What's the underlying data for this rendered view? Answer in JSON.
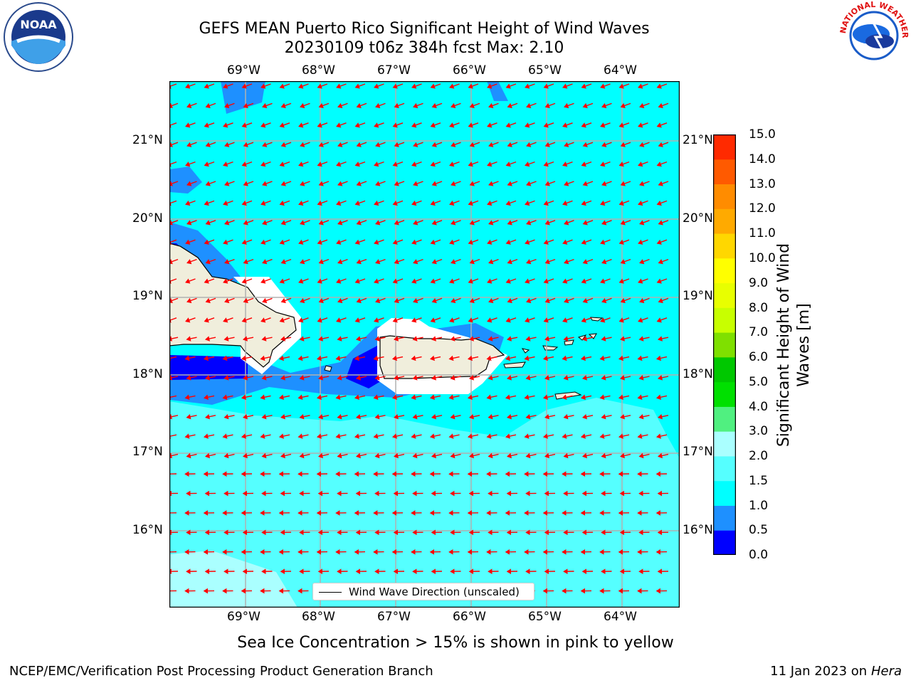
{
  "title": {
    "line1": "GEFS MEAN Puerto Rico Significant Height of Wind Waves",
    "line2": "20230109 t06z 384h fcst   Max: 2.10"
  },
  "map": {
    "lon_labels": [
      "69°W",
      "68°W",
      "67°W",
      "66°W",
      "65°W",
      "64°W"
    ],
    "lat_labels": [
      "21°N",
      "20°N",
      "19°N",
      "18°N",
      "17°N",
      "16°N"
    ],
    "legend_text": "Wind Wave Direction (unscaled)",
    "colors": {
      "ocean_main": "#00ffff",
      "ocean_light": "#55ffff",
      "ocean_lighter": "#aaffff",
      "shallow_mid": "#1e90ff",
      "shallow_dark": "#0000ff",
      "land": "#f0eedc",
      "arrow": "#ff0000"
    }
  },
  "colorbar": {
    "label": "Significant Height of Wind Waves [m]",
    "ticks": [
      "15.0",
      "14.0",
      "13.0",
      "12.0",
      "11.0",
      "10.0",
      "9.0",
      "8.0",
      "7.0",
      "6.0",
      "5.0",
      "4.0",
      "3.0",
      "2.0",
      "1.5",
      "1.0",
      "0.5",
      "0.0"
    ],
    "colors": [
      "#0000ff",
      "#1e90ff",
      "#00ffff",
      "#55ffff",
      "#aaffff",
      "#50f080",
      "#00e000",
      "#00c800",
      "#7fe000",
      "#c8ff00",
      "#e8ff00",
      "#ffff00",
      "#ffd700",
      "#ffaa00",
      "#ff8c00",
      "#ff5a00",
      "#ff2a00",
      "#ff0000"
    ]
  },
  "subtitle": "Sea Ice Concentration > 15% is shown in pink to yellow",
  "footer": {
    "left": "NCEP/EMC/Verification Post Processing Product Generation Branch",
    "right_date": "11 Jan 2023 on ",
    "right_host": "Hera"
  },
  "logos": {
    "noaa_text": "NOAA",
    "nws_text": "NATIONAL WEATHER SERVICE"
  }
}
